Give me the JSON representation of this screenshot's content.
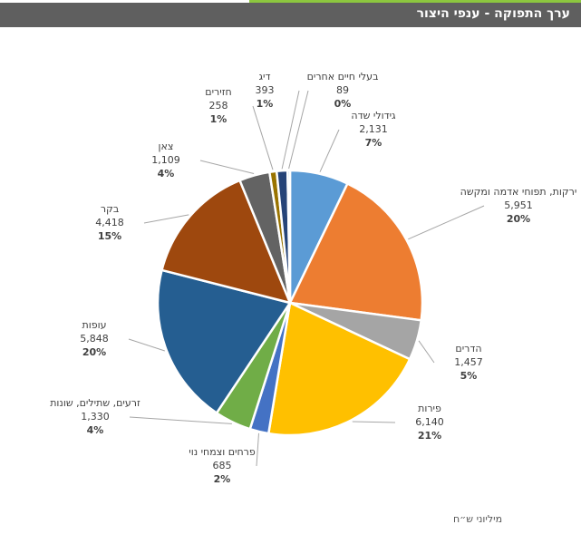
{
  "header": {
    "title": "ערך התפוקה - ענפי היצור"
  },
  "colors": {
    "accent": "#8cc63f",
    "header_bg": "#5f5f5f",
    "leader_line": "#a6a6a6"
  },
  "unit_note": "מיליוני ש״ח",
  "chart_data": {
    "type": "pie",
    "title": "",
    "start_angle_deg": 0,
    "direction": "clockwise",
    "slices": [
      {
        "name": "גידולי שדה",
        "value": 2131,
        "value_label": "2,131",
        "percent_label": "7%",
        "color": "#5b9bd5"
      },
      {
        "name": "ירקות, תפוחי אדמה ומקשה",
        "value": 5951,
        "value_label": "5,951",
        "percent_label": "20%",
        "color": "#ed7d31"
      },
      {
        "name": "הדרים",
        "value": 1457,
        "value_label": "1,457",
        "percent_label": "5%",
        "color": "#a5a5a5"
      },
      {
        "name": "פירות",
        "value": 6140,
        "value_label": "6,140",
        "percent_label": "21%",
        "color": "#ffc000"
      },
      {
        "name": "פרחים וצמחי נוי",
        "value": 685,
        "value_label": "685",
        "percent_label": "2%",
        "color": "#4472c4"
      },
      {
        "name": "זרעים, שתילים, שונות",
        "value": 1330,
        "value_label": "1,330",
        "percent_label": "4%",
        "color": "#70ad47"
      },
      {
        "name": "עופות",
        "value": 5848,
        "value_label": "5,848",
        "percent_label": "20%",
        "color": "#255e91"
      },
      {
        "name": "בקר",
        "value": 4418,
        "value_label": "4,418",
        "percent_label": "15%",
        "color": "#9e480e"
      },
      {
        "name": "צאן",
        "value": 1109,
        "value_label": "1,109",
        "percent_label": "4%",
        "color": "#636363"
      },
      {
        "name": "חזירים",
        "value": 258,
        "value_label": "258",
        "percent_label": "1%",
        "color": "#997300"
      },
      {
        "name": "דיג",
        "value": 393,
        "value_label": "393",
        "percent_label": "1%",
        "color": "#264478"
      },
      {
        "name": "בעלי חיים אחרים",
        "value": 89,
        "value_label": "89",
        "percent_label": "0%",
        "color": "#7cafdd"
      }
    ]
  }
}
